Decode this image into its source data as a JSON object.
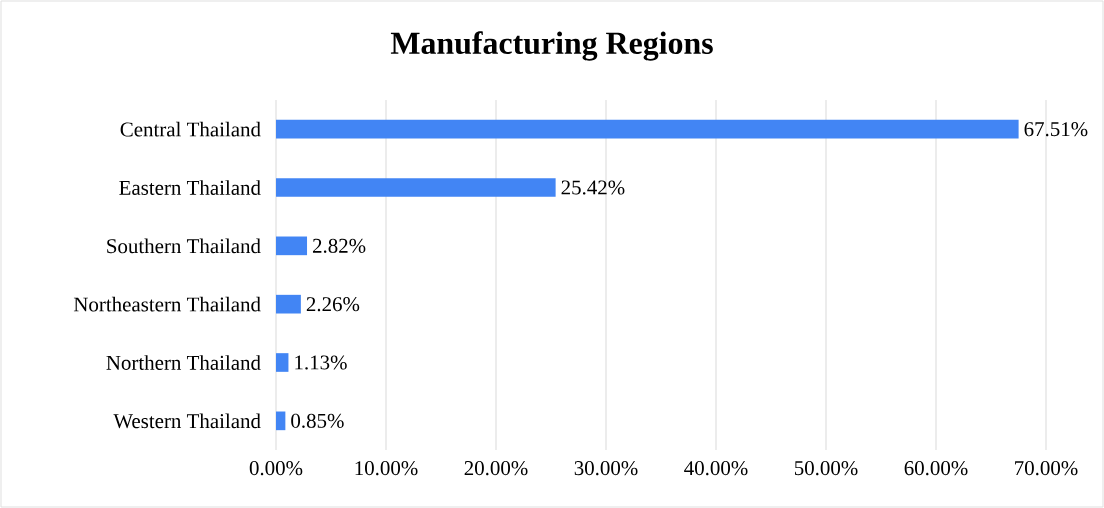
{
  "chart_data": {
    "type": "bar",
    "orientation": "horizontal",
    "title": "Manufacturing Regions",
    "categories": [
      "Central Thailand",
      "Eastern Thailand",
      "Southern Thailand",
      "Northeastern Thailand",
      "Northern Thailand",
      "Western Thailand"
    ],
    "values": [
      67.51,
      25.42,
      2.82,
      2.26,
      1.13,
      0.85
    ],
    "value_labels": [
      "67.51%",
      "25.42%",
      "2.82%",
      "2.26%",
      "1.13%",
      "0.85%"
    ],
    "color": "#4285f4",
    "xlim": [
      0,
      70
    ],
    "xticks": [
      {
        "value": 0,
        "label": "0.00%"
      },
      {
        "value": 10,
        "label": "10.00%"
      },
      {
        "value": 20,
        "label": "20.00%"
      },
      {
        "value": 30,
        "label": "30.00%"
      },
      {
        "value": 40,
        "label": "40.00%"
      },
      {
        "value": 50,
        "label": "50.00%"
      },
      {
        "value": 60,
        "label": "60.00%"
      },
      {
        "value": 70,
        "label": "70.00%"
      }
    ],
    "grid": "x"
  }
}
